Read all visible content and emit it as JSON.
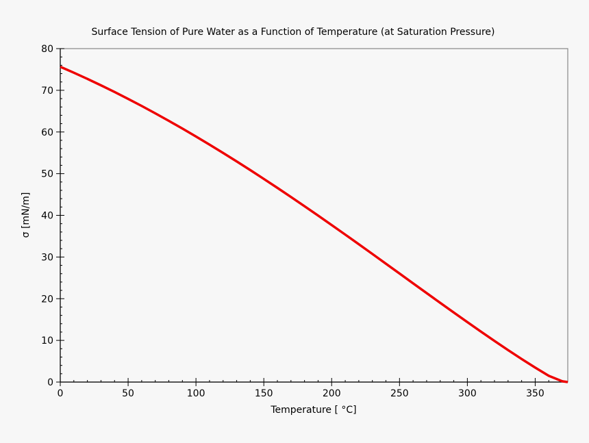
{
  "chart_data": {
    "type": "line",
    "title": "Surface Tension of Pure Water as a Function of Temperature (at Saturation Pressure)",
    "xlabel": "Temperature [ °C]",
    "ylabel": "σ [mN/m]",
    "xlim": [
      0,
      374
    ],
    "ylim": [
      0,
      80
    ],
    "xticks": [
      0,
      50,
      100,
      150,
      200,
      250,
      300,
      350
    ],
    "yticks": [
      0,
      10,
      20,
      30,
      40,
      50,
      60,
      70,
      80
    ],
    "grid": false,
    "series": [
      {
        "color": "#ee0000",
        "x": [
          0.01,
          10,
          20,
          30,
          40,
          50,
          60,
          70,
          80,
          90,
          100,
          110,
          120,
          130,
          140,
          150,
          160,
          170,
          180,
          190,
          200,
          210,
          220,
          230,
          240,
          250,
          260,
          270,
          280,
          290,
          300,
          310,
          320,
          330,
          340,
          350,
          360,
          370,
          373.99
        ],
        "y": [
          75.65,
          74.22,
          72.74,
          71.19,
          69.6,
          67.94,
          66.24,
          64.48,
          62.67,
          60.82,
          58.91,
          56.96,
          54.97,
          52.93,
          50.86,
          48.74,
          46.59,
          44.4,
          42.19,
          39.95,
          37.67,
          35.38,
          33.07,
          30.74,
          28.39,
          26.04,
          23.69,
          21.34,
          19.01,
          16.69,
          14.39,
          12.11,
          9.87,
          7.67,
          5.53,
          3.47,
          1.5,
          0.18,
          0.0
        ]
      }
    ]
  }
}
